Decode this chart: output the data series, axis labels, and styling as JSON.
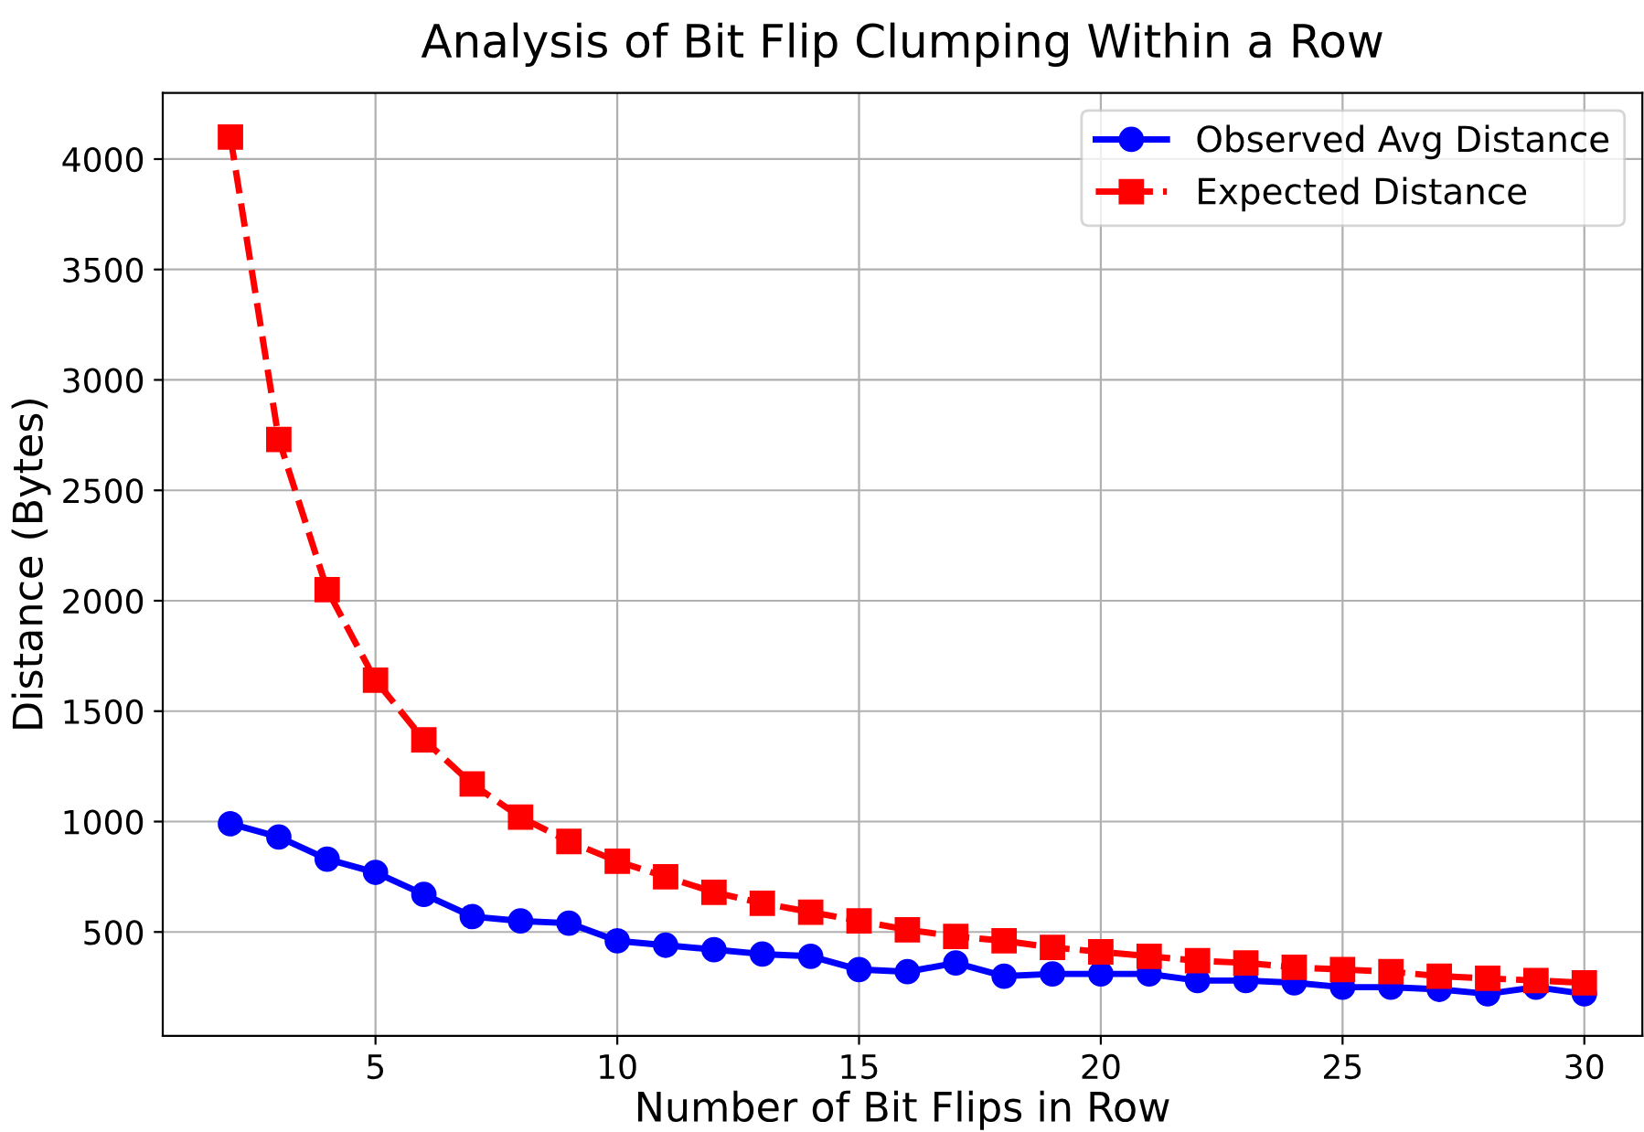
{
  "chart_data": {
    "type": "line",
    "title": "Analysis of Bit Flip Clumping Within a Row",
    "xlabel": "Number of Bit Flips in Row",
    "ylabel": "Distance (Bytes)",
    "x": [
      2,
      3,
      4,
      5,
      6,
      7,
      8,
      9,
      10,
      11,
      12,
      13,
      14,
      15,
      16,
      17,
      18,
      19,
      20,
      21,
      22,
      23,
      24,
      25,
      26,
      27,
      28,
      29,
      30
    ],
    "series": [
      {
        "name": "Observed Avg Distance",
        "color": "#0000ff",
        "marker": "circle",
        "line_style": "solid",
        "values": [
          990,
          930,
          830,
          770,
          670,
          570,
          550,
          540,
          460,
          440,
          420,
          400,
          390,
          330,
          320,
          360,
          300,
          310,
          310,
          310,
          280,
          280,
          270,
          250,
          250,
          240,
          220,
          250,
          220
        ]
      },
      {
        "name": "Expected Distance",
        "color": "#ff0000",
        "marker": "square",
        "line_style": "dashed",
        "values": [
          4100,
          2730,
          2050,
          1640,
          1370,
          1170,
          1020,
          910,
          820,
          750,
          680,
          630,
          590,
          550,
          510,
          480,
          460,
          430,
          410,
          390,
          370,
          360,
          340,
          330,
          320,
          300,
          290,
          280,
          270
        ]
      }
    ],
    "xlim": [
      0.6,
      31.2
    ],
    "xticks": [
      5,
      10,
      15,
      20,
      25,
      30
    ],
    "ylim": [
      30,
      4300
    ],
    "yticks": [
      500,
      1000,
      1500,
      2000,
      2500,
      3000,
      3500,
      4000
    ],
    "grid": true,
    "legend": "top right"
  }
}
